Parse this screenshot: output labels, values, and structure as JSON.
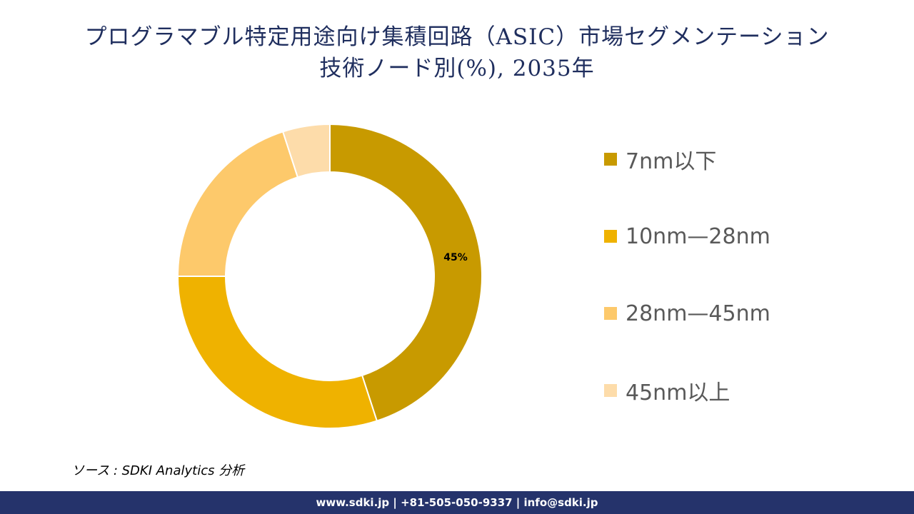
{
  "title": {
    "line1": "プログラマブル特定用途向け集積回路（ASIC）市場セグメンテーション",
    "line2": "技術ノード別(%), 2035年"
  },
  "chart_data": {
    "type": "pie",
    "subtype": "donut",
    "title": "プログラマブル特定用途向け集積回路（ASIC）市場セグメンテーション 技術ノード別(%), 2035年",
    "categories": [
      "7nm以下",
      "10nm—28nm",
      "28nm—45nm",
      "45nm以上"
    ],
    "values": [
      45,
      30,
      20,
      5
    ],
    "colors": [
      "#c89a00",
      "#efb200",
      "#fdc96b",
      "#fddcaa"
    ],
    "data_labels": [
      {
        "category": "7nm以下",
        "text": "45%"
      }
    ],
    "legend_position": "right",
    "start_angle": 0,
    "direction": "clockwise"
  },
  "legend": {
    "items": [
      {
        "label": "7nm以下",
        "color": "#c89a00"
      },
      {
        "label": "10nm—28nm",
        "color": "#efb200"
      },
      {
        "label": "28nm—45nm",
        "color": "#fdc96b"
      },
      {
        "label": "45nm以上",
        "color": "#fddcaa"
      }
    ]
  },
  "source": "ソース : SDKI Analytics  分析",
  "footer": "www.sdki.jp | +81-505-050-9337 | info@sdki.jp"
}
